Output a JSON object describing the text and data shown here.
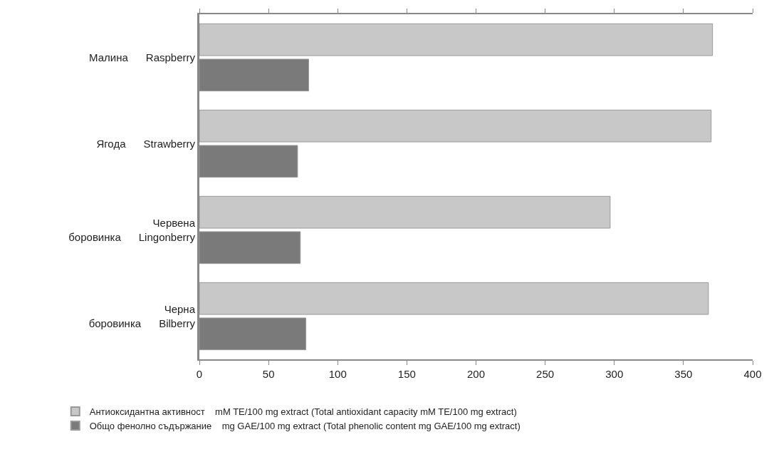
{
  "chart_data": {
    "type": "bar",
    "orientation": "horizontal",
    "categories": [
      "Малина    Raspberry",
      "Ягода    Strawberry",
      "Червена боровинка    Lingonberry",
      "Черна боровинка    Bilberry"
    ],
    "series": [
      {
        "name": "Антиоксидантна активност    mM TE/100 mg extract (Total antioxidant capacity mM TE/100 mg extract)",
        "color": "#c8c8c8",
        "values": [
          371,
          370,
          297,
          368
        ]
      },
      {
        "name": "Общо фенолно съдържание    mg GAE/100 mg extract (Total phenolic content mg GAE/100 mg extract)",
        "color": "#7a7a7a",
        "values": [
          79,
          71,
          73,
          77
        ]
      }
    ],
    "xlim": [
      0,
      400
    ],
    "xticks": [
      0,
      50,
      100,
      150,
      200,
      250,
      300,
      350,
      400
    ],
    "legend": "bottom"
  }
}
